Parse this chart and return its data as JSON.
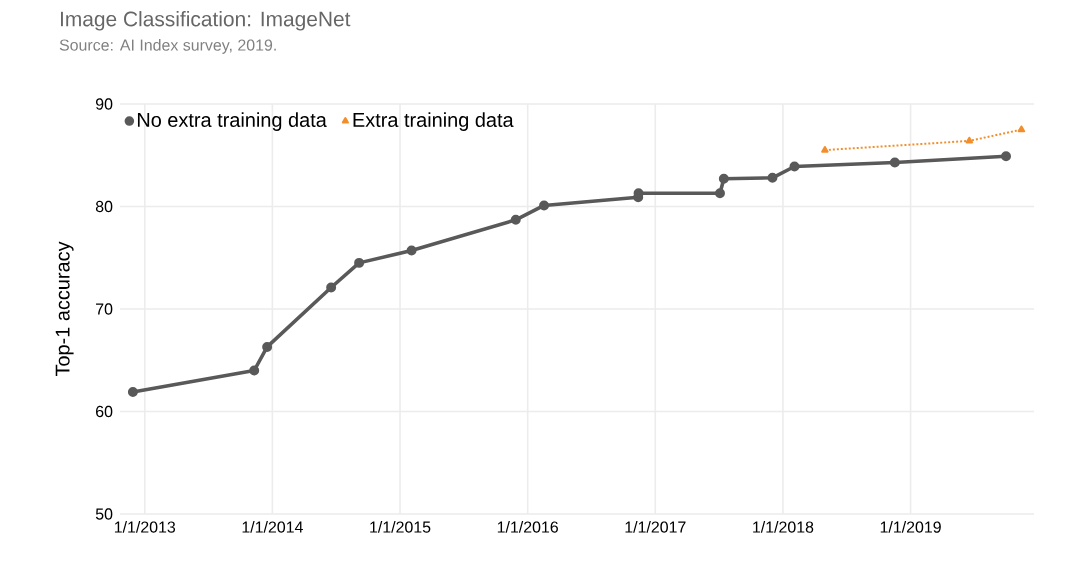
{
  "chart_data": {
    "type": "line",
    "title": "Image Classification: ImageNet",
    "subtitle": "Source: AI Index survey, 2019.",
    "ylabel": "Top-1 accuracy",
    "series": [
      {
        "name": "No extra training data",
        "color": "#595959",
        "marker": "circle",
        "line_style": "solid",
        "x": [
          "2012-11-28",
          "2013-11-10",
          "2013-12-17",
          "2014-06-18",
          "2014-09-06",
          "2015-02-03",
          "2015-11-28",
          "2016-02-17",
          "2016-11-13",
          "2016-11-14",
          "2017-07-05",
          "2017-07-16",
          "2017-12-02",
          "2018-02-03",
          "2018-11-17",
          "2019-10-01"
        ],
        "values": [
          61.9,
          64.0,
          66.3,
          72.1,
          74.5,
          75.7,
          78.7,
          80.1,
          80.9,
          81.3,
          81.3,
          82.7,
          82.8,
          83.9,
          84.3,
          84.9
        ]
      },
      {
        "name": "Extra training data",
        "color": "#f28e2b",
        "marker": "triangle",
        "line_style": "dotted",
        "x": [
          "2018-05-01",
          "2019-06-18",
          "2019-11-14"
        ],
        "values": [
          85.5,
          86.4,
          87.5
        ]
      }
    ],
    "xlim": [
      "2012-10-22",
      "2019-12-20"
    ],
    "xticks": [
      {
        "value": "2013-01-01",
        "label": "1/1/2013"
      },
      {
        "value": "2014-01-01",
        "label": "1/1/2014"
      },
      {
        "value": "2015-01-01",
        "label": "1/1/2015"
      },
      {
        "value": "2016-01-01",
        "label": "1/1/2016"
      },
      {
        "value": "2017-01-01",
        "label": "1/1/2017"
      },
      {
        "value": "2018-01-01",
        "label": "1/1/2018"
      },
      {
        "value": "2019-01-01",
        "label": "1/1/2019"
      }
    ],
    "ylim": [
      50,
      90
    ],
    "yticks": [
      50,
      60,
      70,
      80,
      90
    ],
    "grid": true,
    "legend": "top left"
  }
}
